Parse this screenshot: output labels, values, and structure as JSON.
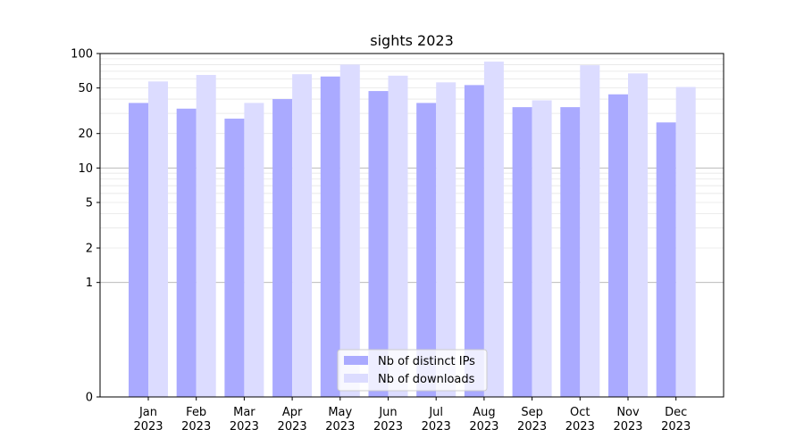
{
  "chart_data": {
    "type": "bar",
    "title": "sights 2023",
    "xlabel": "",
    "ylabel": "",
    "yscale": "symlog",
    "ylim": [
      0,
      100
    ],
    "yticks": [
      0,
      1,
      2,
      5,
      10,
      20,
      50,
      100
    ],
    "grid": true,
    "legend_position": "bottom-center",
    "categories": [
      "Jan\n2023",
      "Feb\n2023",
      "Mar\n2023",
      "Apr\n2023",
      "May\n2023",
      "Jun\n2023",
      "Jul\n2023",
      "Aug\n2023",
      "Sep\n2023",
      "Oct\n2023",
      "Nov\n2023",
      "Dec\n2023"
    ],
    "series": [
      {
        "name": "Nb of distinct IPs",
        "color": "#aaaaff",
        "values": [
          37,
          33,
          27,
          40,
          63,
          47,
          37,
          53,
          34,
          34,
          44,
          25
        ]
      },
      {
        "name": "Nb of downloads",
        "color": "#dcdcff",
        "values": [
          57,
          65,
          37,
          66,
          80,
          64,
          56,
          85,
          39,
          79,
          67,
          51
        ]
      }
    ]
  }
}
